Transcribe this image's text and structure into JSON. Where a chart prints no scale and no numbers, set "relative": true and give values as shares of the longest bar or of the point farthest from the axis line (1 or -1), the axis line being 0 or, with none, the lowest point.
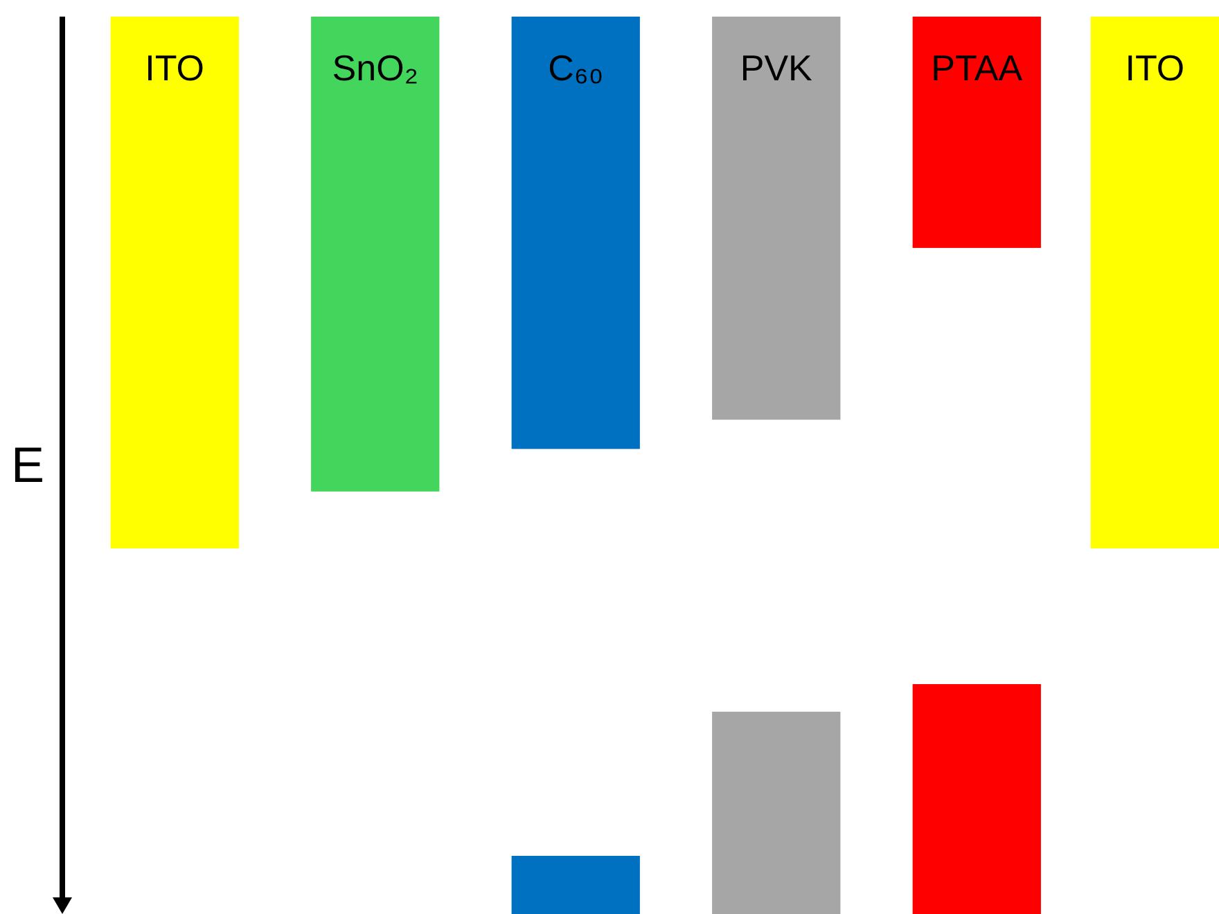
{
  "chart_data": [
    {
      "type": "bar",
      "relative": true,
      "ylabel": "E",
      "categories": [
        "ITO",
        "SnO₂",
        "C₆₀",
        "PVK",
        "PTAA",
        "ITO"
      ],
      "series": [
        {
          "colors": [
            "#ffff00",
            "#44d65c",
            "#0070c0",
            "#a6a6a6",
            "#ff0000",
            "#ffff00"
          ],
          "values": [
            -1,
            -0.893,
            -0.813,
            -0.758,
            -0.435,
            -1
          ]
        }
      ]
    },
    {
      "type": "bar",
      "relative": true,
      "categories": [
        null,
        null,
        null,
        null,
        null,
        null
      ],
      "series": [
        {
          "colors": [
            null,
            null,
            "#0070c0",
            "#a6a6a6",
            "#ff0000",
            null
          ],
          "values": [
            null,
            null,
            0.253,
            0.88,
            1,
            null
          ]
        }
      ]
    }
  ]
}
